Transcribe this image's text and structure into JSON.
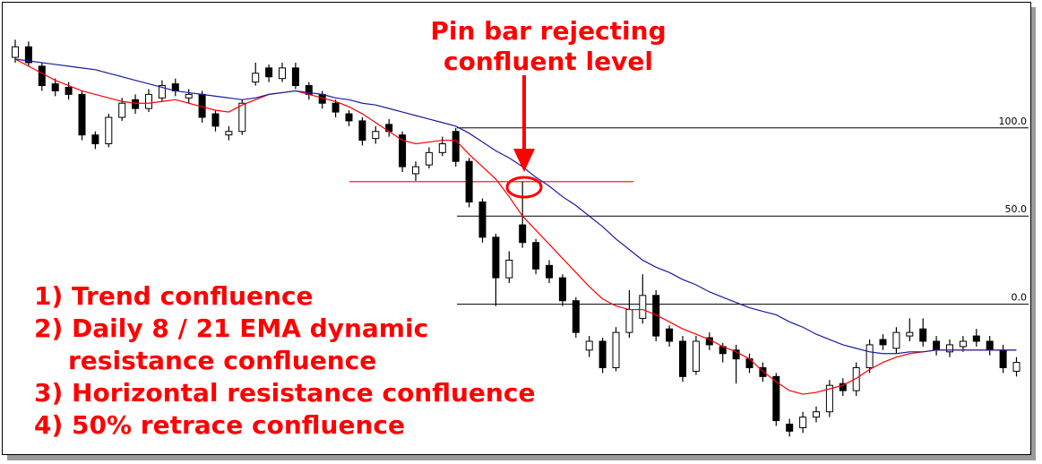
{
  "chart_data": {
    "type": "candlestick",
    "title_lines": [
      "Pin bar rejecting",
      "confluent level"
    ],
    "notes": [
      "1) Trend confluence",
      "2) Daily 8 / 21 EMA dynamic",
      "resistance confluence",
      "3) Horizontal resistance confluence",
      "4) 50% retrace confluence"
    ],
    "ylim": [
      -84,
      170
    ],
    "up_color": "#ffffff",
    "down_color": "#000000",
    "levels": [
      {
        "value": 100,
        "label": "100.0"
      },
      {
        "value": 50,
        "label": "50.0"
      },
      {
        "value": 0,
        "label": "0.0"
      }
    ],
    "level_color": "#000000",
    "resistance_level": 69.5,
    "resistance_color": "#ff0000",
    "open": [
      140,
      146,
      135,
      125,
      123,
      119,
      96,
      91,
      106,
      116,
      111,
      117,
      125,
      117,
      119,
      108,
      96,
      98,
      126,
      134,
      128,
      134,
      124,
      119,
      114,
      108,
      104,
      94,
      102,
      96,
      74,
      79,
      86,
      98,
      81,
      58,
      38,
      15,
      45,
      35,
      22,
      15,
      2,
      -26,
      -21,
      -36,
      -16,
      -8,
      5,
      -14,
      -21,
      -38,
      -19,
      -24,
      -26,
      -31,
      -36,
      -41,
      -68,
      -70,
      -64,
      -61,
      -45,
      -49,
      -36,
      -20,
      -25,
      -18,
      -14,
      -21,
      -27,
      -24,
      -18,
      -21,
      -26,
      -38
    ],
    "high": [
      150,
      149,
      137,
      128,
      126,
      121,
      98,
      108,
      117,
      119,
      122,
      127,
      128,
      122,
      121,
      110,
      101,
      116,
      137,
      136,
      137,
      137,
      126,
      121,
      116,
      110,
      106,
      101,
      105,
      98,
      81,
      89,
      95,
      100,
      83,
      60,
      40,
      30,
      69.5,
      37,
      25,
      17,
      4,
      -18,
      -19,
      -13,
      8,
      17,
      8,
      -12,
      -18,
      -18,
      -16,
      -22,
      -23,
      -28,
      -33,
      -39,
      -65,
      -61,
      -58,
      -43,
      -42,
      -33,
      -20,
      -17,
      -13,
      -8,
      -8,
      -18,
      -20,
      -18,
      -14,
      -18,
      -23,
      -30
    ],
    "low": [
      137,
      135,
      121,
      118,
      116,
      93,
      88,
      89,
      104,
      108,
      109,
      115,
      118,
      114,
      103,
      98,
      93,
      96,
      124,
      126,
      126,
      122,
      116,
      111,
      106,
      101,
      90,
      91,
      95,
      75,
      70,
      77,
      84,
      78,
      55,
      35,
      -1,
      12,
      32,
      17,
      12,
      -1,
      -19,
      -30,
      -39,
      -38,
      -19,
      -11,
      -21,
      -24,
      -44,
      -40,
      -26,
      -33,
      -45,
      -39,
      -44,
      -69,
      -75,
      -73,
      -67,
      -64,
      -52,
      -52,
      -39,
      -26,
      -28,
      -21,
      -24,
      -29,
      -30,
      -27,
      -24,
      -29,
      -39,
      -41
    ],
    "close": [
      146,
      137,
      124,
      121,
      119,
      96,
      91,
      106,
      114,
      111,
      119,
      124,
      121,
      119,
      106,
      101,
      98,
      114,
      131,
      129,
      134,
      124,
      119,
      114,
      109,
      104,
      93,
      98,
      98,
      78,
      78,
      86,
      91,
      81,
      58,
      38,
      15,
      25,
      35,
      20,
      15,
      2,
      -16,
      -21,
      -36,
      -16,
      -3,
      5,
      -18,
      -21,
      -41,
      -21,
      -23,
      -28,
      -31,
      -36,
      -41,
      -66,
      -72,
      -64,
      -61,
      -46,
      -49,
      -36,
      -23,
      -23,
      -16,
      -16,
      -21,
      -26,
      -23,
      -21,
      -21,
      -26,
      -36,
      -33
    ],
    "series": [
      {
        "color": "#ff0000",
        "values": [
          139,
          135,
          131,
          127,
          124,
          121,
          119,
          117,
          115,
          114,
          114,
          115,
          116,
          114,
          112,
          110,
          109,
          113,
          116,
          119,
          120,
          121,
          119,
          117,
          115,
          112,
          108,
          103,
          98,
          93,
          91,
          92,
          93,
          93,
          85,
          78,
          71,
          61,
          50,
          42,
          34,
          26,
          18,
          10,
          3,
          -1,
          -3,
          -3,
          -6,
          -10,
          -14,
          -17,
          -20,
          -24,
          -27,
          -31,
          -38,
          -44,
          -49,
          -51,
          -50,
          -48,
          -46,
          -42,
          -37,
          -33,
          -30,
          -28,
          -27,
          -26,
          -26,
          -26,
          -26,
          -26,
          -26,
          -26
        ]
      },
      {
        "color": "#1a1aa0",
        "values": [
          139,
          138,
          137,
          136,
          135,
          134,
          133,
          131,
          129,
          127,
          125,
          123,
          121,
          120,
          119,
          118,
          117,
          116,
          117,
          119,
          120,
          121,
          120,
          119,
          117,
          116,
          114,
          113,
          111,
          109,
          107,
          105,
          103,
          101,
          97,
          92,
          87,
          83,
          78,
          72,
          67,
          61,
          56,
          50,
          44,
          37,
          31,
          25,
          21,
          18,
          14,
          11,
          7,
          4,
          1,
          -2,
          -4,
          -6,
          -10,
          -13,
          -17,
          -20,
          -23,
          -25,
          -27,
          -28,
          -28,
          -27,
          -27,
          -26,
          -26,
          -26,
          -26,
          -26,
          -26,
          -26
        ]
      }
    ]
  }
}
